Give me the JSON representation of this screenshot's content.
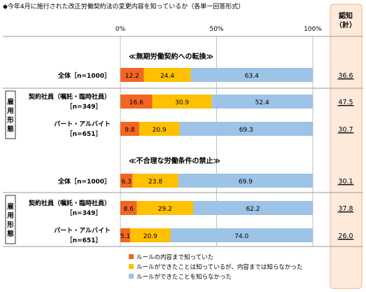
{
  "chart_data": {
    "type": "bar",
    "stacked": true,
    "orientation": "horizontal",
    "title": "◆今年4月に施行された改正労働契約法の変更内容を知っているか（各単一回答形式）",
    "xlim": [
      0,
      100
    ],
    "x_ticks": [
      "0%",
      "50%",
      "100%"
    ],
    "grid": true,
    "legend_position": "bottom-center",
    "right_column_header": "認知\n（計）",
    "side_group_label": "雇用形態",
    "sections": [
      {
        "title": "≪無期労働契約への転換≫",
        "rows": [
          {
            "label": "全体［n=1000］",
            "label_line2": "",
            "values": [
              12.2,
              24.4,
              63.4
            ],
            "total": "36.6"
          },
          {
            "label": "契約社員（嘱託・臨時社員）",
            "label_line2": "［n=349］",
            "values": [
              16.6,
              30.9,
              52.4
            ],
            "total": "47.5"
          },
          {
            "label": "パート・アルバイト",
            "label_line2": "［n=651］",
            "values": [
              9.8,
              20.9,
              69.3
            ],
            "total": "30.7"
          }
        ]
      },
      {
        "title": "≪不合理な労働条件の禁止≫",
        "rows": [
          {
            "label": "全体［n=1000］",
            "label_line2": "",
            "values": [
              6.3,
              23.8,
              69.9
            ],
            "total": "30.1"
          },
          {
            "label": "契約社員（嘱託・臨時社員）",
            "label_line2": "［n=349］",
            "values": [
              8.6,
              29.2,
              62.2
            ],
            "total": "37.8"
          },
          {
            "label": "パート・アルバイト",
            "label_line2": "［n=651］",
            "values": [
              5.1,
              20.9,
              74.0
            ],
            "total": "26.0"
          }
        ]
      }
    ],
    "series": [
      {
        "name": "ルールの内容まで知っていた",
        "color": "#f26522"
      },
      {
        "name": "ルールができたことは知っているが、内容までは知らなかった",
        "color": "#ffc000"
      },
      {
        "name": "ルールができたことを知らなかった",
        "color": "#9dc3e6"
      }
    ]
  },
  "colors": {
    "total_column_bg": "#fdeadb",
    "total_column_border": "#f4b183",
    "grid": "#bfbfbf"
  }
}
